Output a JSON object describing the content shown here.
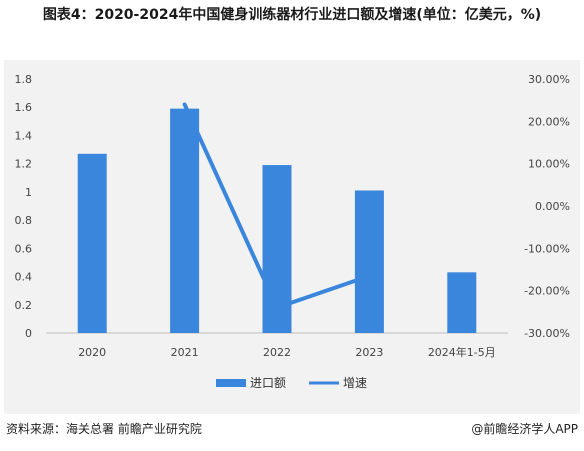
{
  "title": "图表4：2020-2024年中国健身训练器材行业进口额及增速(单位：亿美元，%)",
  "footer": {
    "source": "资料来源：海关总署 前瞻产业研究院",
    "brand": "@前瞻经济学人APP"
  },
  "chart_data": {
    "type": "bar",
    "categories": [
      "2020",
      "2021",
      "2022",
      "2023",
      "2024年1-5月"
    ],
    "series": [
      {
        "name": "进口额",
        "type": "bar",
        "axis": "left",
        "values": [
          1.27,
          1.59,
          1.19,
          1.01,
          0.43
        ]
      },
      {
        "name": "增速",
        "type": "line",
        "axis": "right",
        "values": [
          null,
          24.0,
          -24.0,
          -16.5,
          null
        ]
      }
    ],
    "y_left": {
      "min": 0,
      "max": 1.8,
      "ticks": [
        "0",
        "0.2",
        "0.4",
        "0.6",
        "0.8",
        "1",
        "1.2",
        "1.4",
        "1.6",
        "1.8"
      ]
    },
    "y_right": {
      "min": -30,
      "max": 30,
      "ticks": [
        "-30.00%",
        "-20.00%",
        "-10.00%",
        "0.00%",
        "10.00%",
        "20.00%",
        "30.00%"
      ]
    },
    "colors": {
      "bar": "#3a86dc",
      "line": "#3a86dc"
    },
    "legend_position": "bottom",
    "grid": false
  }
}
